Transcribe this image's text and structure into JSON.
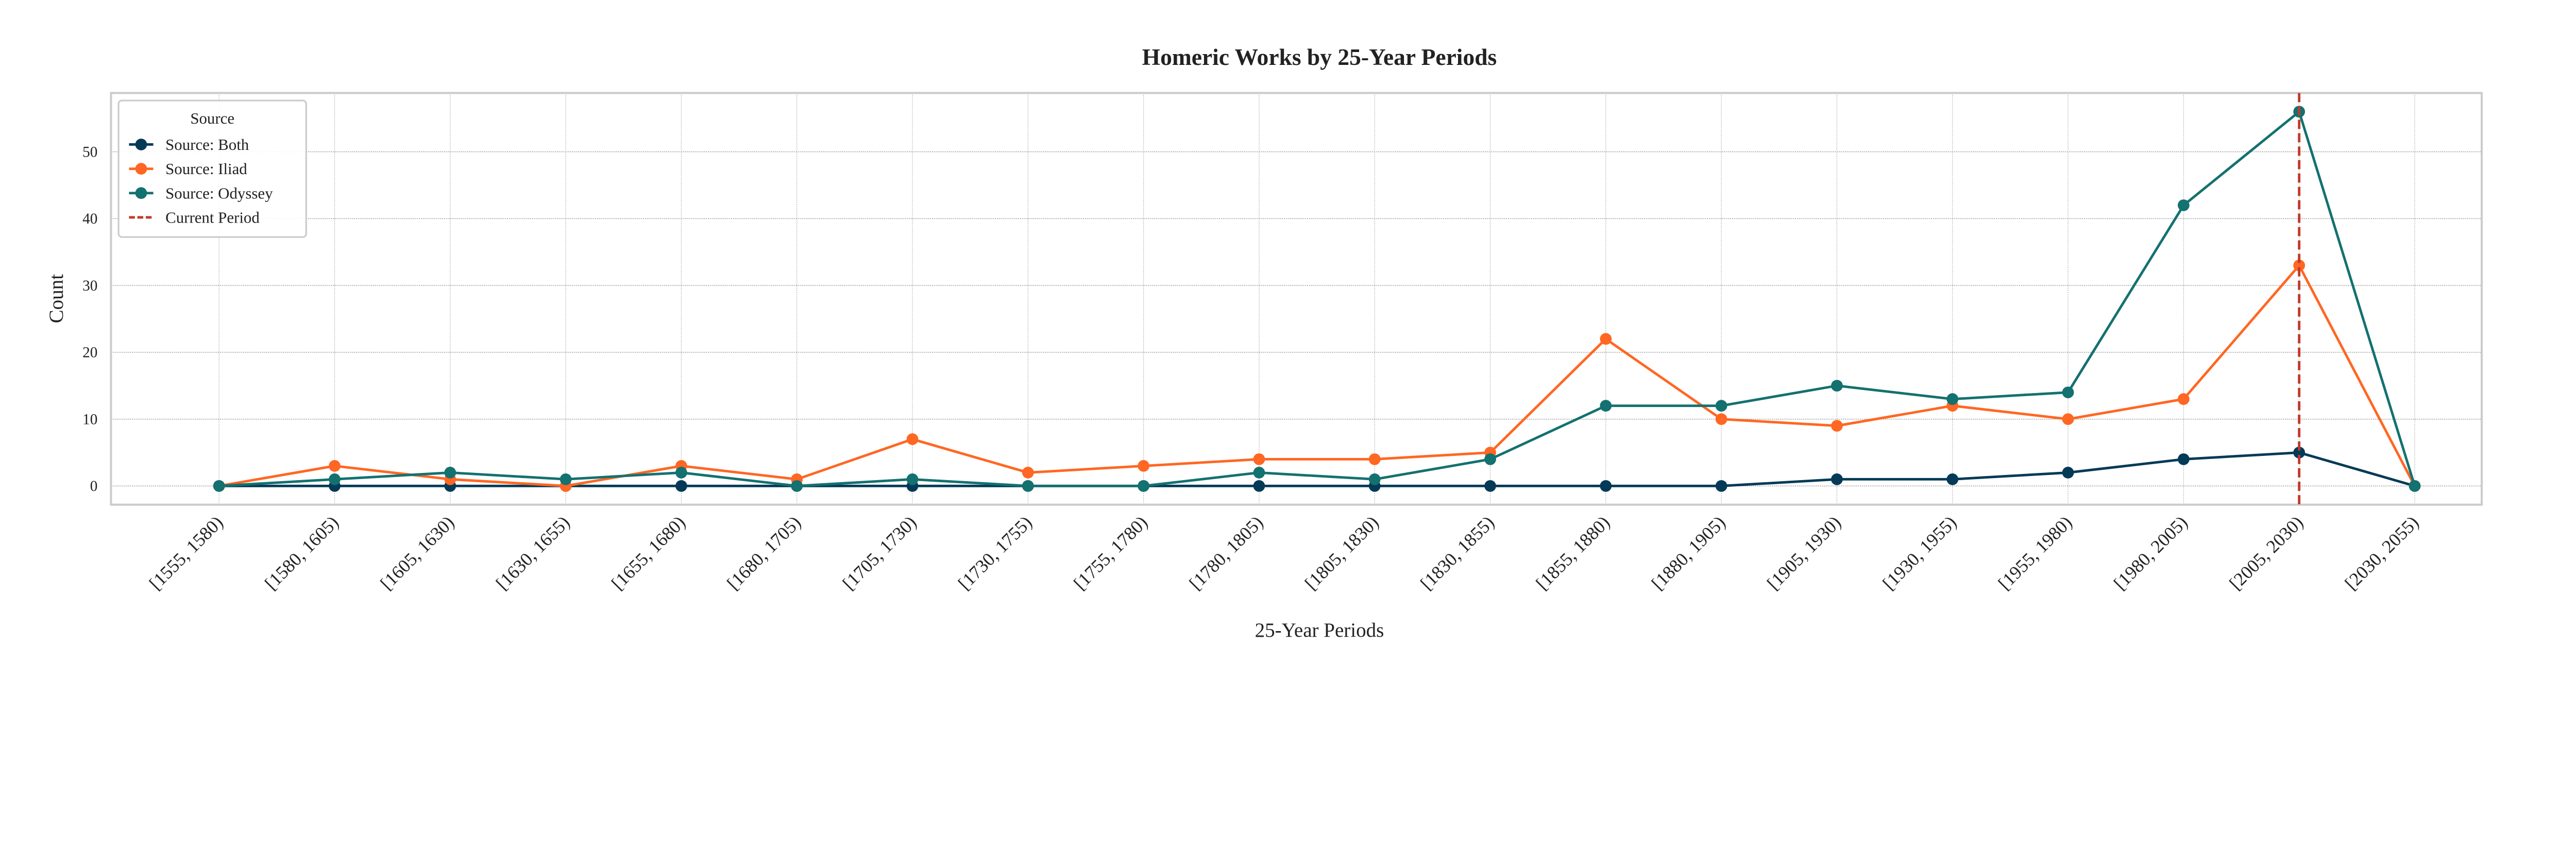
{
  "chart_data": {
    "type": "line",
    "title": "Homeric Works by 25-Year Periods",
    "xlabel": "25-Year Periods",
    "ylabel": "Count",
    "ylim": [
      -2.8,
      58.8
    ],
    "yticks": [
      0,
      10,
      20,
      30,
      40,
      50
    ],
    "grid": true,
    "categories": [
      "[1555, 1580)",
      "[1580, 1605)",
      "[1605, 1630)",
      "[1630, 1655)",
      "[1655, 1680)",
      "[1680, 1705)",
      "[1705, 1730)",
      "[1730, 1755)",
      "[1755, 1780)",
      "[1780, 1805)",
      "[1805, 1830)",
      "[1830, 1855)",
      "[1855, 1880)",
      "[1880, 1905)",
      "[1905, 1930)",
      "[1930, 1955)",
      "[1955, 1980)",
      "[1980, 2005)",
      "[2005, 2030)",
      "[2030, 2055)"
    ],
    "series": [
      {
        "name": "Source: Both",
        "color": "#033a57",
        "values": [
          0,
          0,
          0,
          0,
          0,
          0,
          0,
          0,
          0,
          0,
          0,
          0,
          0,
          0,
          1,
          1,
          2,
          4,
          5,
          0
        ]
      },
      {
        "name": "Source: Iliad",
        "color": "#ff6723",
        "values": [
          0,
          3,
          1,
          0,
          3,
          1,
          7,
          2,
          3,
          4,
          4,
          5,
          22,
          10,
          9,
          12,
          10,
          13,
          33,
          0
        ]
      },
      {
        "name": "Source: Odyssey",
        "color": "#137170",
        "values": [
          0,
          1,
          2,
          1,
          2,
          0,
          1,
          0,
          0,
          2,
          1,
          4,
          12,
          12,
          15,
          13,
          14,
          42,
          56,
          0
        ]
      }
    ],
    "reference_line": {
      "name": "Current Period",
      "category": "[2005, 2030)",
      "color": "#c0392b",
      "style": "dashed"
    },
    "legend": {
      "title": "Source",
      "placement": "top-left"
    }
  }
}
